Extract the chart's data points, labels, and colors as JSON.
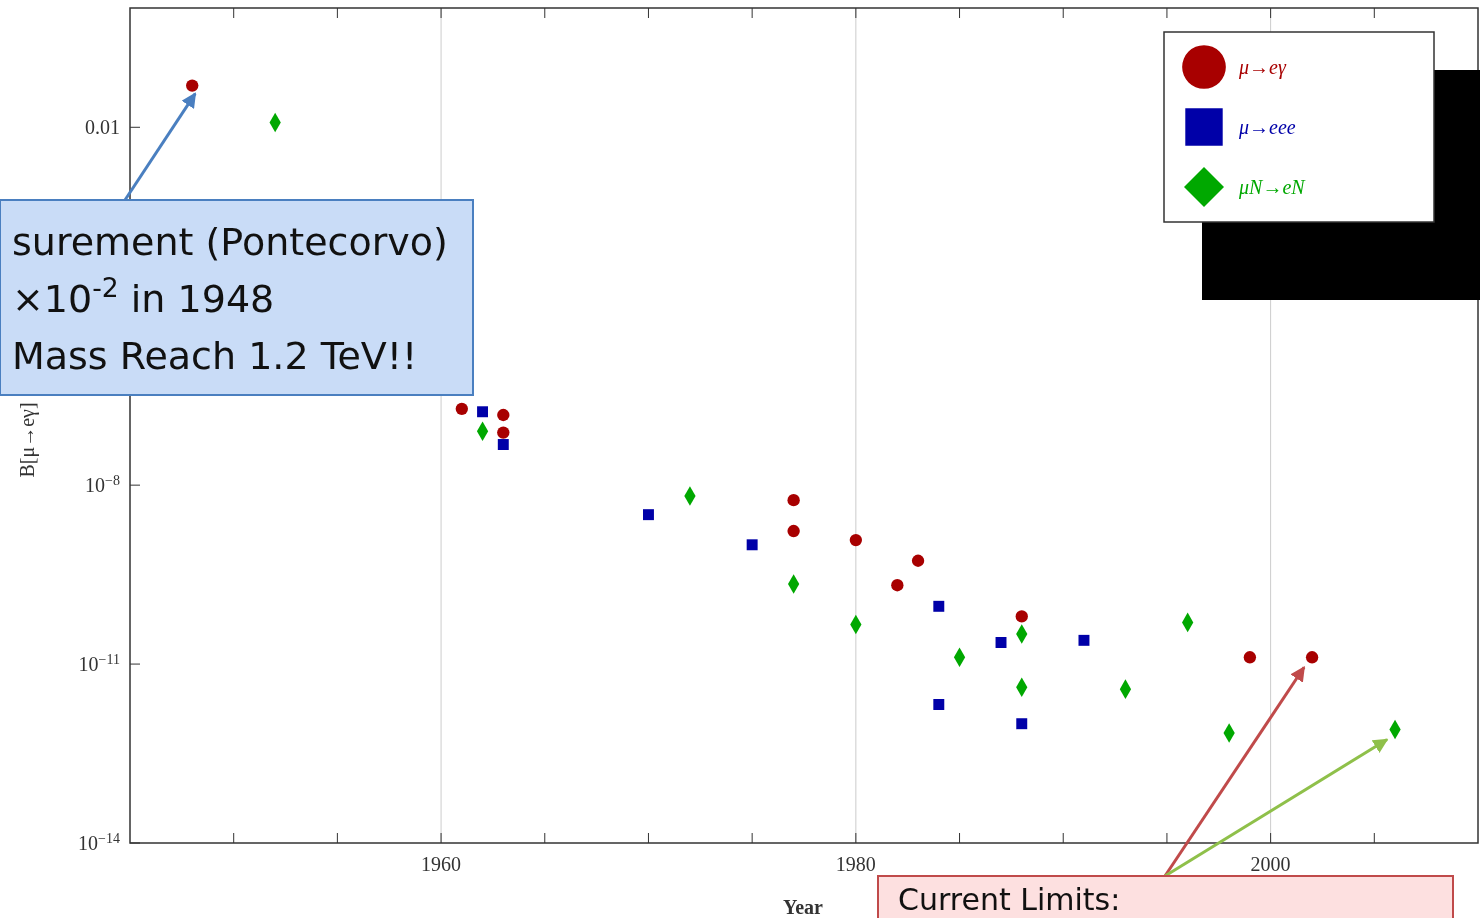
{
  "chart_data": {
    "type": "scatter",
    "xlabel": "Year",
    "ylabel": "B[μ→eγ]",
    "log": "y",
    "xlim": [
      1945,
      2010
    ],
    "xticks": [
      {
        "value": 1950,
        "label": null
      },
      {
        "value": 1955,
        "label": null
      },
      1960,
      {
        "value": 1965,
        "label": null
      },
      {
        "value": 1970,
        "label": null
      },
      {
        "value": 1975,
        "label": null
      },
      1980,
      {
        "value": 1985,
        "label": null
      },
      {
        "value": 1990,
        "label": null
      },
      {
        "value": 1995,
        "label": null
      },
      2000,
      {
        "value": 2005,
        "label": null
      }
    ],
    "ylim": [
      1e-14,
      1
    ],
    "yticks": [
      {
        "value": 0.01,
        "label": "0.01"
      },
      {
        "value": 1e-08,
        "label": "10$^{−8}$"
      },
      {
        "value": 1e-11,
        "label": "10$^{−11}$"
      },
      {
        "value": 1e-14,
        "label": "10$^{−14}$"
      }
    ],
    "grid": "x",
    "legend": "top right",
    "series": [
      {
        "name": "μ→eγ",
        "color": "#a80000",
        "marker": "circle",
        "x": [
          1948,
          1961,
          1963,
          1963,
          1977,
          1977,
          1980,
          1983,
          1982,
          1988,
          1999,
          2002
        ],
        "values": [
          0.05,
          1.9e-07,
          1.5e-07,
          7.6e-08,
          5.6e-09,
          1.7e-09,
          1.2e-09,
          5.4e-10,
          2.1e-10,
          6.3e-11,
          1.3e-11,
          1.3e-11
        ]
      },
      {
        "name": "μ→eee",
        "color": "#0000a8",
        "marker": "square",
        "x": [
          1962,
          1963,
          1970,
          1975,
          1984,
          1987,
          1991,
          1984,
          1988
        ],
        "values": [
          1.7e-07,
          4.8e-08,
          3.2e-09,
          1e-09,
          9.3e-11,
          2.3e-11,
          2.5e-11,
          2.1e-12,
          1e-12
        ]
      },
      {
        "name": "μN→eN",
        "color": "#00a800",
        "marker": "diamond",
        "x": [
          1952,
          1962,
          1972,
          1977,
          1980,
          1996,
          1988,
          1985,
          1988,
          1993,
          1998,
          2006
        ],
        "values": [
          0.012,
          8e-08,
          6.6e-09,
          2.2e-10,
          4.6e-11,
          5e-11,
          3.2e-11,
          1.3e-11,
          4.1e-12,
          3.8e-12,
          7e-13,
          8e-13
        ]
      }
    ],
    "annotations": [
      {
        "text": "surement (Pontecorvo)\n×10$^{-2}$ in 1948\nMass Reach 1.2 TeV!!",
        "x": 1948,
        "y": 0.05
      },
      "Current Limits:"
    ]
  }
}
